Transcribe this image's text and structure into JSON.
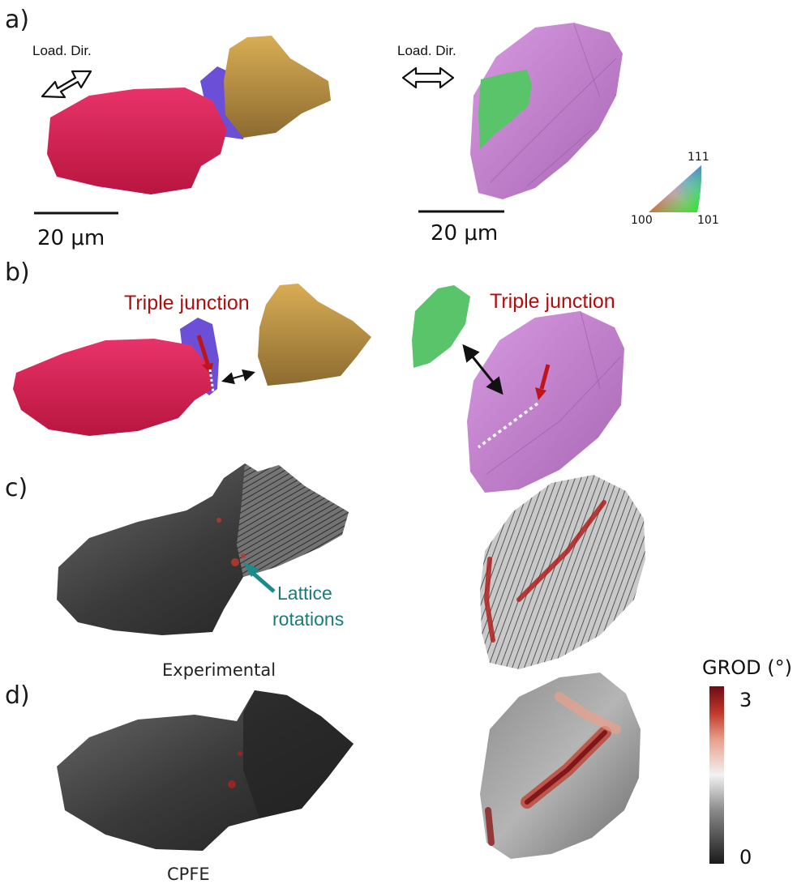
{
  "panels": {
    "a": "a)",
    "b": "b)",
    "c": "c)",
    "d": "d)"
  },
  "load_direction_label": "Load. Dir.",
  "scale_bar_label": "20 μm",
  "ipf_key": {
    "top": "111",
    "left": "100",
    "right": "101"
  },
  "triple_junction_label": "Triple junction",
  "lattice_label_line1": "Lattice",
  "lattice_label_line2": "rotations",
  "experimental_label": "Experimental",
  "cpfe_label": "CPFE",
  "colorbar": {
    "title": "GROD (°)",
    "max_label": "3",
    "min_label": "0",
    "colors": [
      "#1a1a1a",
      "#8a8a8a",
      "#f2f2f2",
      "#e8a08a",
      "#c0392b",
      "#6e0b12"
    ]
  },
  "grain_colors": {
    "red_grain": "#e0245a",
    "blue_grain": "#6b4fd6",
    "gold_grain": "#b8923f",
    "magenta_grain": "#cc86d6",
    "green_grain": "#59c46a"
  },
  "annotation_colors": {
    "red_arrow": "#c0141b",
    "teal_arrow": "#1b8b8b"
  }
}
